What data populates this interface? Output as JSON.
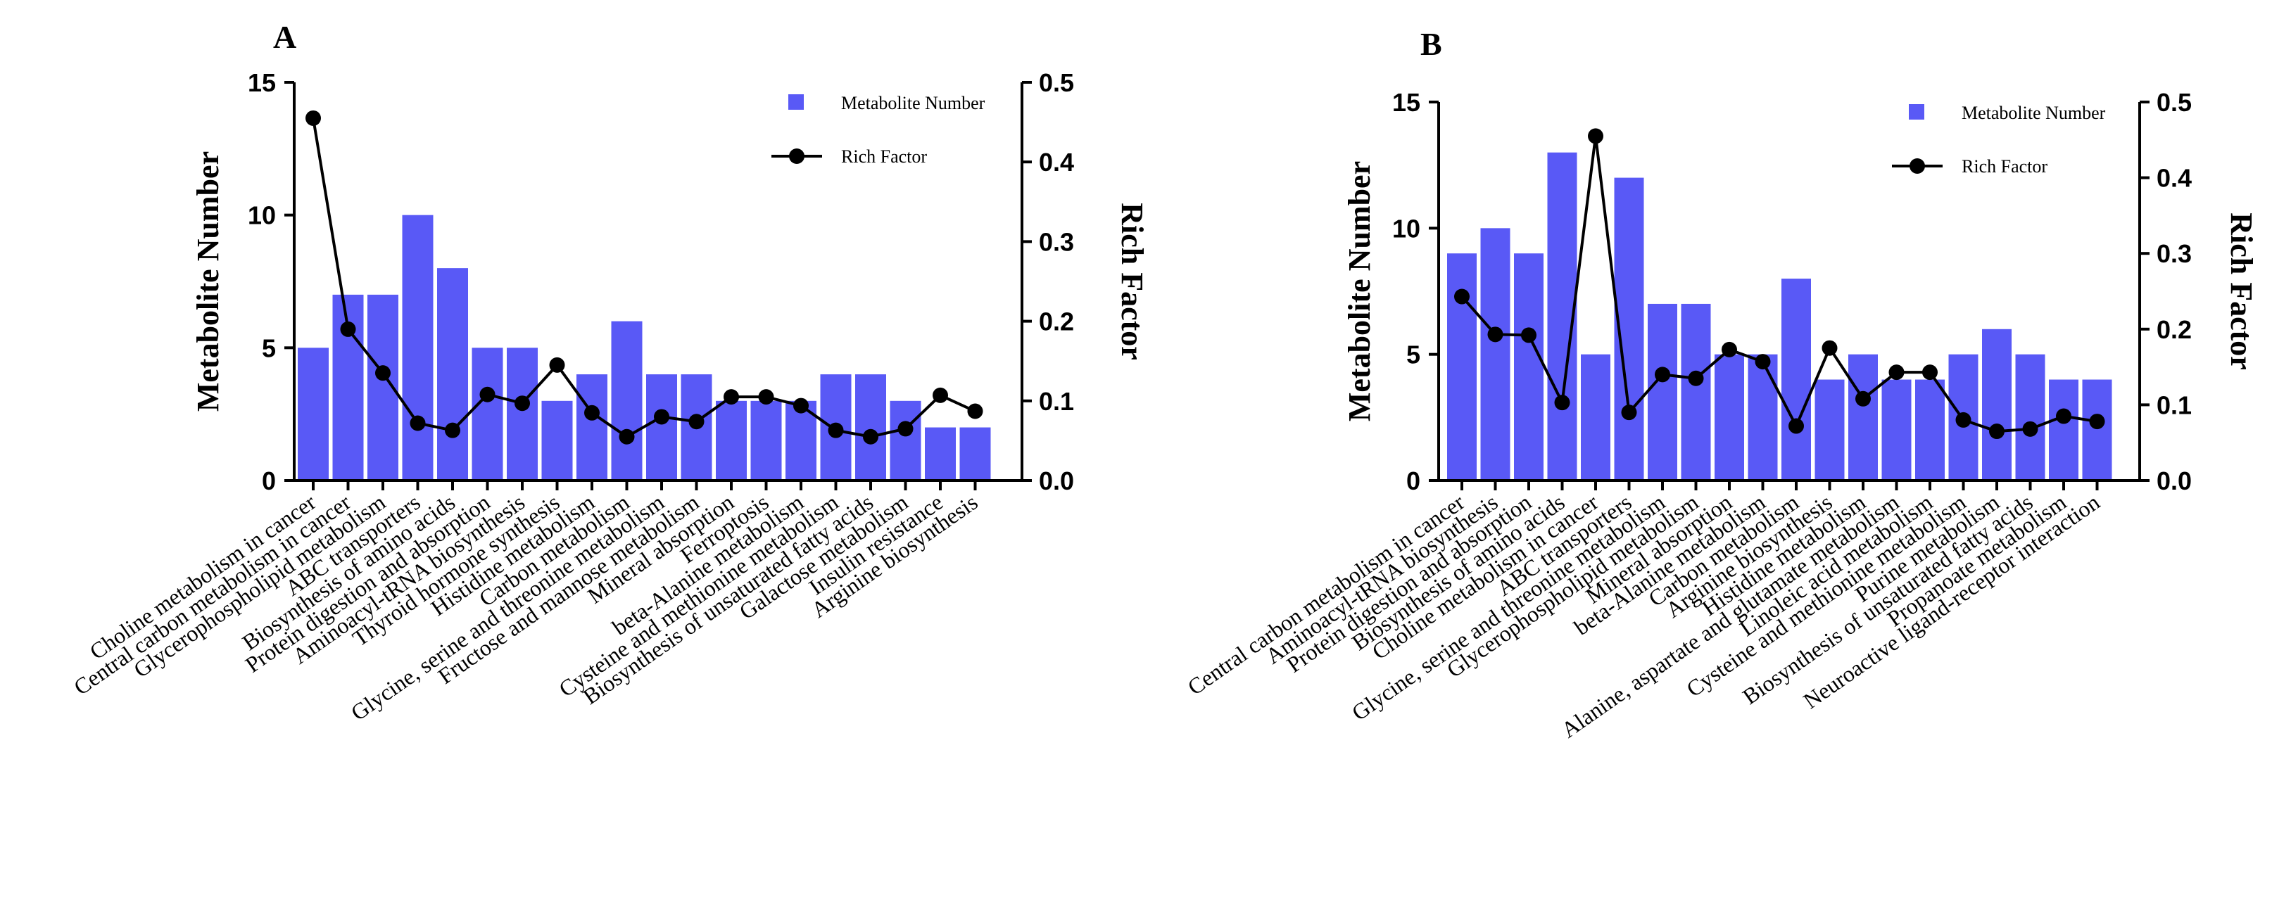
{
  "chart_data": [
    {
      "panel_label": "A",
      "type": "bar+line",
      "ylabel_left": "Metabolite Number",
      "ylabel_right": "Rich Factor",
      "ylim_left": [
        0,
        15
      ],
      "yticks_left": [
        "0",
        "5",
        "10",
        "15"
      ],
      "ylim_right": [
        0,
        0.5
      ],
      "yticks_right": [
        "0.0",
        "0.1",
        "0.2",
        "0.3",
        "0.4",
        "0.5"
      ],
      "legend": [
        "Metabolite Number",
        "Rich Factor"
      ],
      "legend_position": "top-right",
      "categories": [
        "Choline metabolism in cancer",
        "Central carbon metabolism in cancer",
        "Glycerophospholipid metabolism",
        "ABC transporters",
        "Biosynthesis of amino acids",
        "Protein digestion and absorption",
        "Aminoacyl-tRNA biosynthesis",
        "Thyroid hormone synthesis",
        "Histidine metabolism",
        "Carbon metabolism",
        "Glycine, serine and threonine metabolism",
        "Fructose and mannose metabolism",
        "Mineral absorption",
        "Ferroptosis",
        "beta-Alanine metabolism",
        "Cysteine and methionine metabolism",
        "Biosynthesis of unsaturated fatty acids",
        "Galactose metabolism",
        "Insulin resistance",
        "Arginine biosynthesis"
      ],
      "series": [
        {
          "name": "Metabolite Number",
          "axis": "left",
          "values": [
            5,
            7,
            7,
            10,
            8,
            5,
            5,
            3,
            4,
            6,
            4,
            4,
            3,
            3,
            3,
            4,
            4,
            3,
            2,
            2
          ]
        },
        {
          "name": "Rich Factor",
          "axis": "right",
          "values": [
            0.455,
            0.19,
            0.135,
            0.072,
            0.063,
            0.108,
            0.097,
            0.145,
            0.085,
            0.055,
            0.08,
            0.074,
            0.105,
            0.105,
            0.094,
            0.063,
            0.055,
            0.065,
            0.107,
            0.087
          ]
        }
      ]
    },
    {
      "panel_label": "B",
      "type": "bar+line",
      "ylabel_left": "Metabolite Number",
      "ylabel_right": "Rich Factor",
      "ylim_left": [
        0,
        15
      ],
      "yticks_left": [
        "0",
        "5",
        "10",
        "15"
      ],
      "ylim_right": [
        0,
        0.5
      ],
      "yticks_right": [
        "0.0",
        "0.1",
        "0.2",
        "0.3",
        "0.4",
        "0.5"
      ],
      "legend": [
        "Metabolite Number",
        "Rich Factor"
      ],
      "legend_position": "top-right",
      "categories": [
        "Central carbon metabolism in cancer",
        "Aminoacyl-tRNA biosynthesis",
        "Protein digestion and absorption",
        "Biosynthesis of amino acids",
        "Choline metabolism in cancer",
        "ABC transporters",
        "Glycine, serine and threonine metabolism",
        "Glycerophospholipid metabolism",
        "Mineral absorption",
        "beta-Alanine metabolism",
        "Carbon metabolism",
        "Arginine biosynthesis",
        "Histidine metabolism",
        "Alanine, aspartate and glutamate metabolism",
        "Linoleic acid metabolism",
        "Cysteine and methionine metabolism",
        "Purine metabolism",
        "Biosynthesis of unsaturated fatty acids",
        "Propanoate metabolism",
        "Neuroactive ligand-receptor interaction"
      ],
      "series": [
        {
          "name": "Metabolite Number",
          "axis": "left",
          "values": [
            9,
            10,
            9,
            13,
            5,
            12,
            7,
            7,
            5,
            5,
            8,
            4,
            5,
            4,
            4,
            5,
            6,
            5,
            4,
            4
          ]
        },
        {
          "name": "Rich Factor",
          "axis": "right",
          "values": [
            0.243,
            0.193,
            0.192,
            0.103,
            0.455,
            0.09,
            0.14,
            0.135,
            0.173,
            0.157,
            0.072,
            0.175,
            0.108,
            0.143,
            0.143,
            0.08,
            0.065,
            0.068,
            0.085,
            0.078
          ]
        }
      ]
    }
  ]
}
